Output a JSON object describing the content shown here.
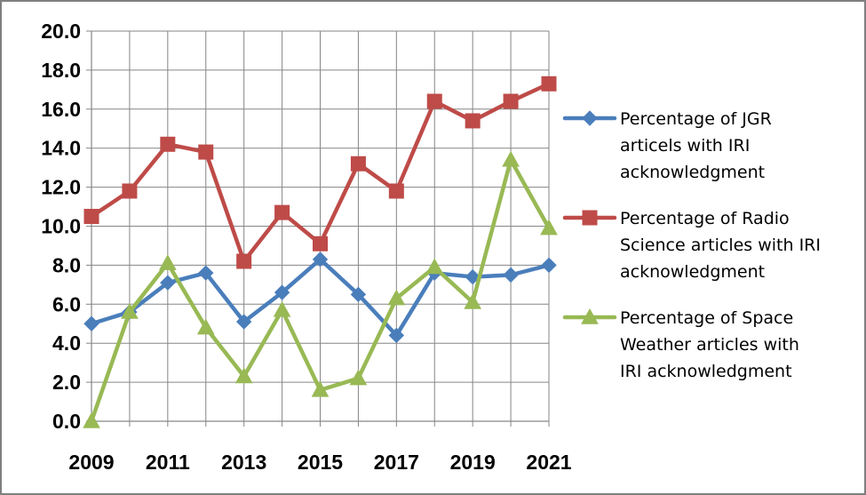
{
  "chart_data": {
    "type": "line",
    "title": "",
    "xlabel": "",
    "ylabel": "",
    "x": [
      2009,
      2010,
      2011,
      2012,
      2013,
      2014,
      2015,
      2016,
      2017,
      2018,
      2019,
      2020,
      2021
    ],
    "x_tick_labels": [
      "2009",
      "2011",
      "2013",
      "2015",
      "2017",
      "2019",
      "2021"
    ],
    "y_tick_labels": [
      "0.0",
      "2.0",
      "4.0",
      "6.0",
      "8.0",
      "10.0",
      "12.0",
      "14.0",
      "16.0",
      "18.0",
      "20.0"
    ],
    "ylim": [
      0,
      20
    ],
    "xlim": [
      2009,
      2021
    ],
    "grid": true,
    "legend_position": "right",
    "series": [
      {
        "name": "Percentage of JGR articels with IRI acknowledgment",
        "legend_lines": [
          "Percentage of JGR",
          "articels with IRI",
          "acknowledgment"
        ],
        "color": "#4a7ebb",
        "marker": "diamond",
        "values": [
          5.0,
          5.6,
          7.1,
          7.6,
          5.1,
          6.6,
          8.3,
          6.5,
          4.4,
          7.6,
          7.4,
          7.5,
          8.0
        ]
      },
      {
        "name": "Percentage of Radio Science articles with IRI acknowledgment",
        "legend_lines": [
          "Percentage of Radio",
          "Science articles with IRI",
          "acknowledgment"
        ],
        "color": "#be4b48",
        "marker": "square",
        "values": [
          10.5,
          11.8,
          14.2,
          13.8,
          8.2,
          10.7,
          9.1,
          13.2,
          11.8,
          16.4,
          15.4,
          16.4,
          17.3
        ]
      },
      {
        "name": "Percentage of Space Weather articles with IRI acknowledgment",
        "legend_lines": [
          "Percentage of Space",
          "Weather articles with",
          "IRI acknowledgment"
        ],
        "color": "#98b954",
        "marker": "triangle",
        "values": [
          0.0,
          5.6,
          8.1,
          4.8,
          2.3,
          5.7,
          1.6,
          2.2,
          6.3,
          7.9,
          6.1,
          13.4,
          9.9
        ]
      }
    ]
  }
}
